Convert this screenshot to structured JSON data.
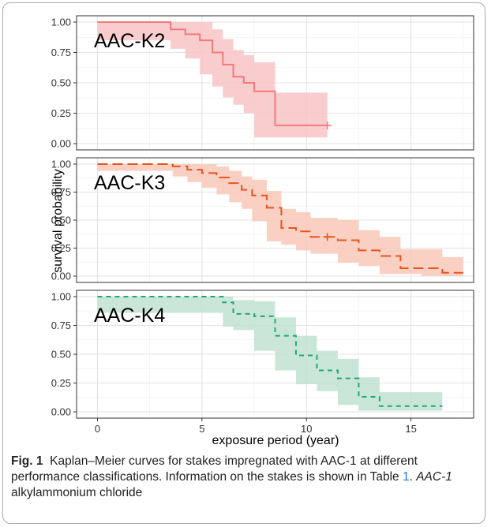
{
  "chart_data": {
    "type": "kaplan-meier step line with confidence bands (3 stacked panels)",
    "xlabel": "exposure period (year)",
    "ylabel": "survival probability",
    "xlim": [
      -1,
      18
    ],
    "ylim": [
      0,
      1
    ],
    "x_ticks": [
      "0",
      "5",
      "10",
      "15"
    ],
    "y_ticks": [
      "0.00",
      "0.25",
      "0.50",
      "0.75",
      "1.00"
    ],
    "grid": true,
    "panels": [
      {
        "label": "AAC-K2",
        "color": "#f07a7a",
        "fill": "#f8c4c6",
        "dash": "solid",
        "x": [
          0,
          3.5,
          4.2,
          4.9,
          5.5,
          6.0,
          6.5,
          7.0,
          7.5,
          8.5,
          11.0
        ],
        "survival": [
          1.0,
          0.94,
          0.9,
          0.85,
          0.75,
          0.65,
          0.55,
          0.5,
          0.43,
          0.15,
          0.15
        ],
        "lower": [
          1.0,
          0.85,
          0.78,
          0.7,
          0.57,
          0.47,
          0.38,
          0.32,
          0.25,
          0.05,
          0.05
        ],
        "upper": [
          1.0,
          1.0,
          1.0,
          1.0,
          0.94,
          0.86,
          0.77,
          0.73,
          0.67,
          0.42,
          0.42
        ],
        "censored": [
          11.0
        ]
      },
      {
        "label": "AAC-K3",
        "color": "#e8541e",
        "fill": "#f9c8b8",
        "dash": "long",
        "x": [
          0,
          3.6,
          4.3,
          5.0,
          5.7,
          6.3,
          6.9,
          7.4,
          8.1,
          8.8,
          9.5,
          10.2,
          11.5,
          12.5,
          13.5,
          14.5,
          15.5,
          16.5,
          17.5
        ],
        "survival": [
          1.0,
          0.98,
          0.95,
          0.92,
          0.88,
          0.83,
          0.77,
          0.72,
          0.61,
          0.43,
          0.4,
          0.35,
          0.32,
          0.23,
          0.18,
          0.07,
          0.07,
          0.03,
          0.03
        ],
        "lower": [
          1.0,
          0.94,
          0.89,
          0.84,
          0.79,
          0.73,
          0.66,
          0.6,
          0.49,
          0.31,
          0.28,
          0.23,
          0.2,
          0.12,
          0.09,
          0.02,
          0.02,
          0.0,
          0.0
        ],
        "upper": [
          1.0,
          1.0,
          1.0,
          1.0,
          0.98,
          0.94,
          0.89,
          0.86,
          0.76,
          0.6,
          0.57,
          0.52,
          0.5,
          0.41,
          0.35,
          0.24,
          0.24,
          0.17,
          0.17
        ],
        "censored": [
          11.0
        ]
      },
      {
        "label": "AAC-K4",
        "color": "#1fa77a",
        "fill": "#bfe2d2",
        "dash": "short",
        "x": [
          0,
          6.0,
          6.5,
          7.5,
          8.5,
          9.5,
          10.5,
          11.5,
          12.5,
          13.5,
          16.5
        ],
        "survival": [
          1.0,
          0.95,
          0.85,
          0.83,
          0.66,
          0.49,
          0.36,
          0.29,
          0.13,
          0.05,
          0.05
        ],
        "lower": [
          1.0,
          0.86,
          0.74,
          0.71,
          0.53,
          0.36,
          0.24,
          0.18,
          0.06,
          0.01,
          0.01
        ],
        "upper": [
          1.0,
          1.0,
          0.97,
          0.96,
          0.82,
          0.66,
          0.53,
          0.46,
          0.3,
          0.17,
          0.17
        ],
        "censored": []
      }
    ]
  },
  "caption": {
    "label": "Fig. 1",
    "text_1": "Kaplan–Meier curves for stakes impregnated with AAC-1 at different performance classifications. Information on the stakes is shown in Table ",
    "link": "1",
    "text_2": ". ",
    "italic": "AAC-1",
    "text_3": " alkylammonium chloride"
  }
}
